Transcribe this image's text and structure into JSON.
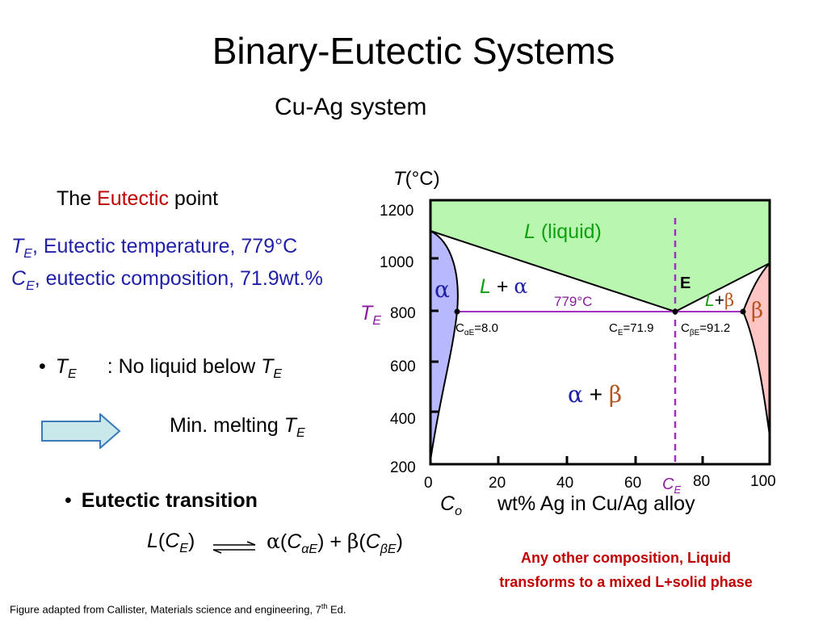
{
  "slide": {
    "title": "Binary-Eutectic Systems",
    "subtitle": "Cu-Ag system"
  },
  "left": {
    "eutectic_prefix": "The ",
    "eutectic_word": "Eutectic",
    "eutectic_suffix": " point",
    "te_sym": "T",
    "te_sub": "E",
    "te_text": ", Eutectic temperature, 779°C",
    "ce_sym": "C",
    "ce_sub": "E",
    "ce_text": ", eutectic composition, 71.9wt.%",
    "bullet1_sym": "T",
    "bullet1_sub": "E",
    "bullet1_text": ":  No liquid below ",
    "bullet1_tail_sym": "T",
    "bullet1_tail_sub": "E",
    "min_melting": "Min. melting ",
    "min_melting_sym": "T",
    "min_melting_sub": "E",
    "bullet2": "Eutectic transition",
    "reaction": {
      "L": "L",
      "ce_sym": "C",
      "ce_sub": "E",
      "alpha": "α",
      "c_alpha_sub": "αE",
      "plus": "+",
      "beta": "β",
      "c_beta_sub": "βE"
    }
  },
  "diagram": {
    "y_axis_sym": "T",
    "y_axis_unit": "(°C)",
    "y_ticks": [
      "1200",
      "1000",
      "800",
      "600",
      "400",
      "200"
    ],
    "x_ticks": [
      "0",
      "20",
      "40",
      "60",
      "80",
      "100"
    ],
    "x_ce_sym": "C",
    "x_ce_sub": "E",
    "x_axis_sym": "C",
    "x_axis_sub": "o",
    "x_axis_label": "wt% Ag in Cu/Ag alloy",
    "liquid_sym": "L",
    "liquid_text": " (liquid)",
    "alpha": "α",
    "l_plus_alpha_L": "L",
    "l_plus_alpha_plus": "+",
    "l_plus_alpha_alpha": "α",
    "eutectic_temp": "779°C",
    "point_label": "E",
    "l_plus_beta_L": "L",
    "l_plus_beta_plus": "+",
    "l_plus_beta_beta": "β",
    "beta": "β",
    "te_sym": "T",
    "te_sub": "E",
    "c_alpha_e_C": "C",
    "c_alpha_e_sub": "αE",
    "c_alpha_e_val": "=8.0",
    "c_e_C": "C",
    "c_e_sub": "E",
    "c_e_val": "=71.9",
    "c_beta_e_C": "C",
    "c_beta_e_sub": "βE",
    "c_beta_e_val": "=91.2",
    "alpha_beta_alpha": "α",
    "alpha_beta_plus": "+",
    "alpha_beta_beta": "β"
  },
  "note_line1": "Any other composition, Liquid",
  "note_line2": "transforms to a mixed L+solid phase",
  "footer_prefix": "Figure adapted from Callister, Materials science and engineering, 7",
  "footer_sup": "th",
  "footer_suffix": " Ed.",
  "colors": {
    "liquid_fill": "#b9f7b0",
    "alpha_fill": "#b8b8ff",
    "beta_fill": "#ffc4c4",
    "eutectic_line": "#a030c0",
    "arrow_fill": "#c8e8ea",
    "accent_red": "#c00000",
    "accent_blue": "#1f1fa8"
  },
  "icons": {
    "arrow": "right-arrow-icon"
  }
}
